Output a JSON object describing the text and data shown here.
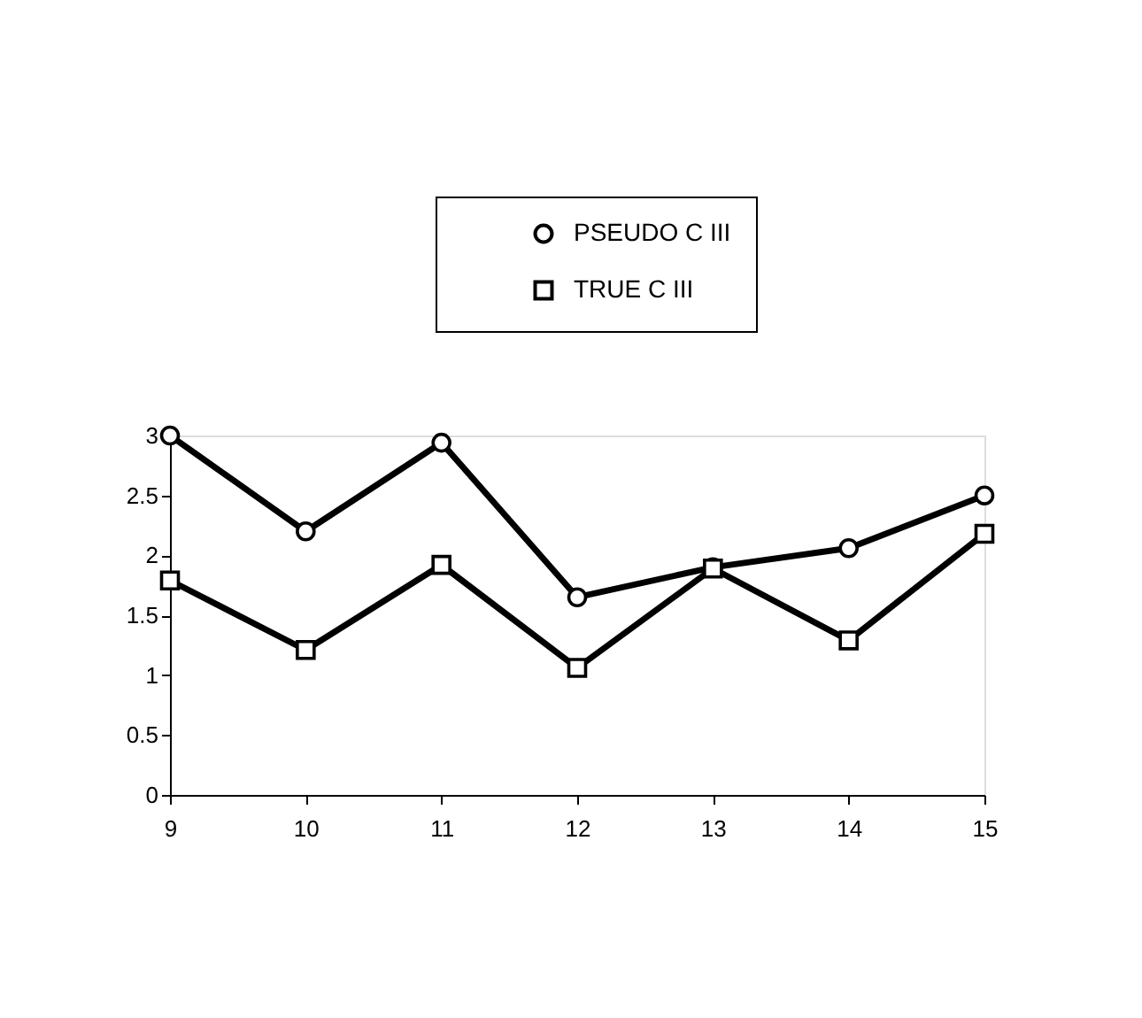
{
  "chart_data": {
    "type": "line",
    "x": [
      9,
      10,
      11,
      12,
      13,
      14,
      15
    ],
    "series": [
      {
        "name": "PSEUDO C III",
        "color": "#000000",
        "marker": "circle",
        "values": [
          3.0,
          2.2,
          2.94,
          1.65,
          1.9,
          2.06,
          2.5
        ]
      },
      {
        "name": "TRUE C III",
        "color": "#000000",
        "marker": "square",
        "values": [
          1.79,
          1.21,
          1.92,
          1.06,
          1.89,
          1.29,
          2.18
        ]
      }
    ],
    "xlim": [
      9,
      15
    ],
    "xticks": [
      9,
      10,
      11,
      12,
      13,
      14,
      15
    ],
    "ylim": [
      0,
      3
    ],
    "yticks": [
      0,
      0.5,
      1,
      1.5,
      2,
      2.5,
      3
    ],
    "grid": false,
    "legend": "top right",
    "line_style": "solid"
  }
}
